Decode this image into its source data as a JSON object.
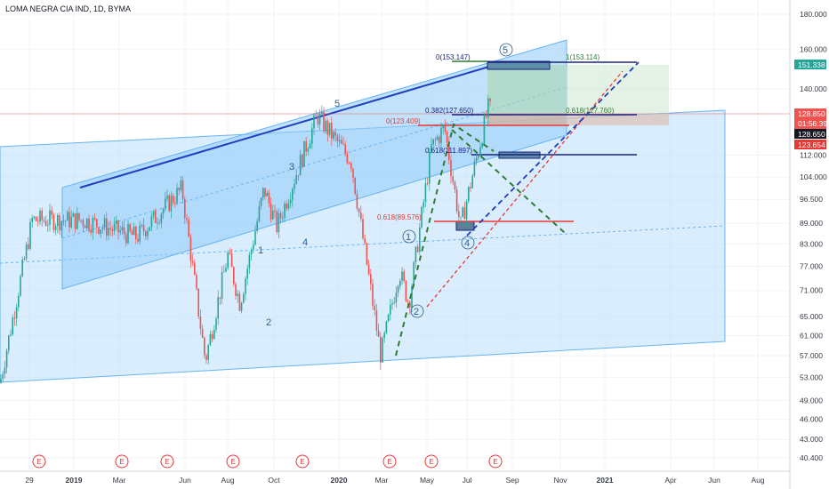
{
  "header": {
    "title": "LOMA NEGRA CIA IND, 1D, BYMA"
  },
  "colors": {
    "up": "#26a69a",
    "down": "#ef5350",
    "channel": "#90caf9",
    "trend": "#1e3fbf",
    "price_tag": "#ef5350",
    "last_tag": "#131722",
    "target_tag": "#26a69a",
    "event": "#e53935"
  },
  "price_axis": {
    "labels": [
      "180.000",
      "160.000",
      "140.000",
      "128.850",
      "128.650",
      "123.654",
      "112.000",
      "104.000",
      "96.500",
      "89.000",
      "83.000",
      "77.000",
      "71.000",
      "65.000",
      "61.000",
      "57.000",
      "53.000",
      "49.000",
      "46.000",
      "43.000",
      "40.400"
    ],
    "scale": "log",
    "tags": {
      "target": "151.338",
      "price": "128.850",
      "countdown": "01:56:39",
      "last": "128.650",
      "low_tag": "123.654"
    }
  },
  "time_axis": {
    "labels": [
      {
        "text": "29",
        "bold": false
      },
      {
        "text": "2019",
        "bold": true
      },
      {
        "text": "Mar",
        "bold": false
      },
      {
        "text": "Jun",
        "bold": false
      },
      {
        "text": "Aug",
        "bold": false
      },
      {
        "text": "Oct",
        "bold": false
      },
      {
        "text": "2020",
        "bold": true
      },
      {
        "text": "Mar",
        "bold": false
      },
      {
        "text": "May",
        "bold": false
      },
      {
        "text": "Jul",
        "bold": false
      },
      {
        "text": "Sep",
        "bold": false
      },
      {
        "text": "Nov",
        "bold": false
      },
      {
        "text": "2021",
        "bold": true
      },
      {
        "text": "Apr",
        "bold": false
      },
      {
        "text": "Jun",
        "bold": false
      },
      {
        "text": "Aug",
        "bold": false
      }
    ]
  },
  "events": {
    "label": "E",
    "count": 8
  },
  "waves": {
    "outer": [
      "1",
      "2",
      "3",
      "4",
      "5"
    ],
    "inner": [
      "1",
      "2",
      "4",
      "5"
    ]
  },
  "fib_labels": {
    "top": "0(153.147)",
    "top_right": "1(153.114)",
    "f382": "0.382(127.650)",
    "f0": "0(123.409)",
    "f618a": "0.618(127.760)",
    "f618b": "0.618(111.897)",
    "f618c": "0.618(89.576)"
  },
  "chart_data": {
    "type": "candlestick",
    "title": "LOMA NEGRA CIA IND, 1D, BYMA",
    "y_scale": "log",
    "ylim": [
      40.4,
      185
    ],
    "x_range": [
      "2018-11-29",
      "2021-08"
    ],
    "last_price": 128.65,
    "close_marker": 128.85,
    "levels": [
      {
        "label": "0(153.147)",
        "value": 153.147
      },
      {
        "label": "1(153.114)",
        "value": 153.114
      },
      {
        "label": "0.382(127.650)",
        "value": 127.65
      },
      {
        "label": "0.618(127.760)",
        "value": 127.76
      },
      {
        "label": "0(123.409)",
        "value": 123.409
      },
      {
        "label": "0.618(111.897)",
        "value": 111.897
      },
      {
        "label": "0.618(89.576)",
        "value": 89.576
      }
    ],
    "target": 151.338,
    "swing_points": [
      {
        "date": "2018-12-01",
        "value": 52
      },
      {
        "date": "2019-01-10",
        "value": 90
      },
      {
        "date": "2019-03-15",
        "value": 90
      },
      {
        "date": "2019-05-20",
        "value": 85
      },
      {
        "date": "2019-07-15",
        "value": 100
      },
      {
        "date": "2019-08-13",
        "value": 56
      },
      {
        "date": "2019-09-10",
        "value": 80
      },
      {
        "date": "2019-09-25",
        "value": 68
      },
      {
        "date": "2019-10-25",
        "value": 100
      },
      {
        "date": "2019-11-10",
        "value": 88
      },
      {
        "date": "2019-12-30",
        "value": 128
      },
      {
        "date": "2020-02-10",
        "value": 110
      },
      {
        "date": "2020-03-18",
        "value": 57
      },
      {
        "date": "2020-04-10",
        "value": 76
      },
      {
        "date": "2020-04-22",
        "value": 68
      },
      {
        "date": "2020-05-20",
        "value": 115
      },
      {
        "date": "2020-06-05",
        "value": 123
      },
      {
        "date": "2020-06-25",
        "value": 88
      },
      {
        "date": "2020-07-30",
        "value": 132
      },
      {
        "date": "2020-08-03",
        "value": 128.65
      }
    ]
  }
}
